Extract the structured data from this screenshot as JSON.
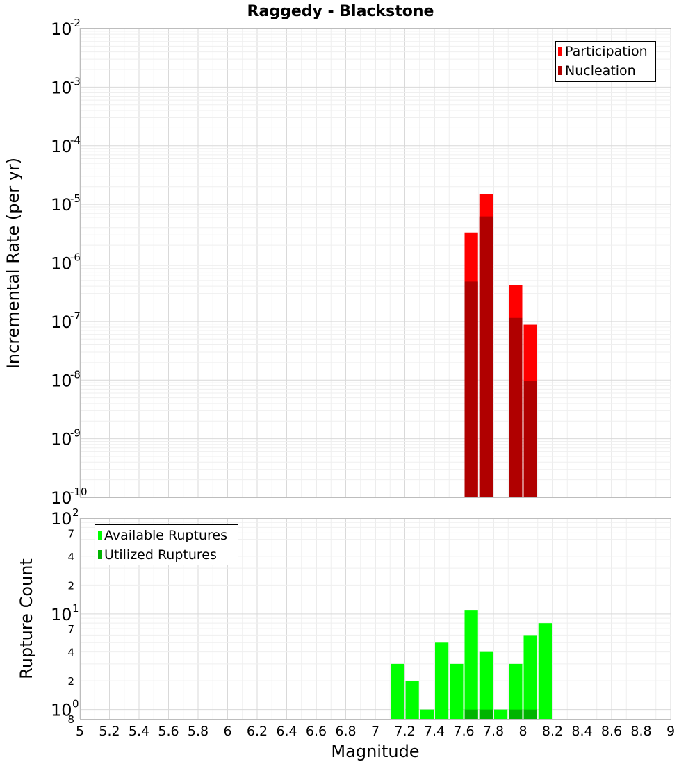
{
  "chart_data": [
    {
      "type": "bar",
      "title": "Raggedy - Blackstone",
      "xlabel": "",
      "ylabel": "Incremental Rate (per yr)",
      "yscale": "log",
      "ylim": [
        1e-10,
        0.01
      ],
      "xlim": [
        5,
        9
      ],
      "bin_width": 0.1,
      "grid": true,
      "legend_position": "top-right",
      "y_ticks": [
        {
          "base": "10",
          "exp": "-10"
        },
        {
          "base": "10",
          "exp": "-9"
        },
        {
          "base": "10",
          "exp": "-8"
        },
        {
          "base": "10",
          "exp": "-7"
        },
        {
          "base": "10",
          "exp": "-6"
        },
        {
          "base": "10",
          "exp": "-5"
        },
        {
          "base": "10",
          "exp": "-4"
        },
        {
          "base": "10",
          "exp": "-3"
        },
        {
          "base": "10",
          "exp": "-2"
        }
      ],
      "series": [
        {
          "name": "Participation",
          "color": "#ff0000",
          "x": [
            7.65,
            7.75,
            7.95,
            8.05
          ],
          "values": [
            3.3e-06,
            1.5e-05,
            4.2e-07,
            8.8e-08
          ]
        },
        {
          "name": "Nucleation",
          "color": "#b00000",
          "x": [
            7.65,
            7.75,
            7.95,
            8.05
          ],
          "values": [
            4.8e-07,
            6.2e-06,
            1.15e-07,
            9.8e-09
          ]
        }
      ]
    },
    {
      "type": "bar",
      "title": "",
      "xlabel": "Magnitude",
      "ylabel": "Rupture Count",
      "yscale": "log",
      "ylim": [
        0.8,
        100
      ],
      "xlim": [
        5,
        9
      ],
      "bin_width": 0.1,
      "grid": true,
      "legend_position": "top-left",
      "x_ticks": [
        "5",
        "5.2",
        "5.4",
        "5.6",
        "5.8",
        "6",
        "6.2",
        "6.4",
        "6.6",
        "6.8",
        "7",
        "7.2",
        "7.4",
        "7.6",
        "7.8",
        "8",
        "8.2",
        "8.4",
        "8.6",
        "8.8",
        "9"
      ],
      "y_major_ticks": [
        {
          "base": "10",
          "exp": "0"
        },
        {
          "base": "10",
          "exp": "1"
        },
        {
          "base": "10",
          "exp": "2"
        }
      ],
      "y_minor_ticks": [
        "8",
        "2",
        "4",
        "7",
        "2",
        "4",
        "7"
      ],
      "series": [
        {
          "name": "Available Ruptures",
          "color": "#00ff00",
          "x": [
            7.15,
            7.25,
            7.35,
            7.45,
            7.55,
            7.65,
            7.75,
            7.85,
            7.95,
            8.05,
            8.15
          ],
          "values": [
            3,
            2,
            1,
            5,
            3,
            11,
            4,
            1,
            3,
            6,
            8
          ]
        },
        {
          "name": "Utilized Ruptures",
          "color": "#00b400",
          "x": [
            7.65,
            7.75,
            7.95,
            8.05
          ],
          "values": [
            1,
            1,
            1,
            1
          ]
        }
      ]
    }
  ]
}
